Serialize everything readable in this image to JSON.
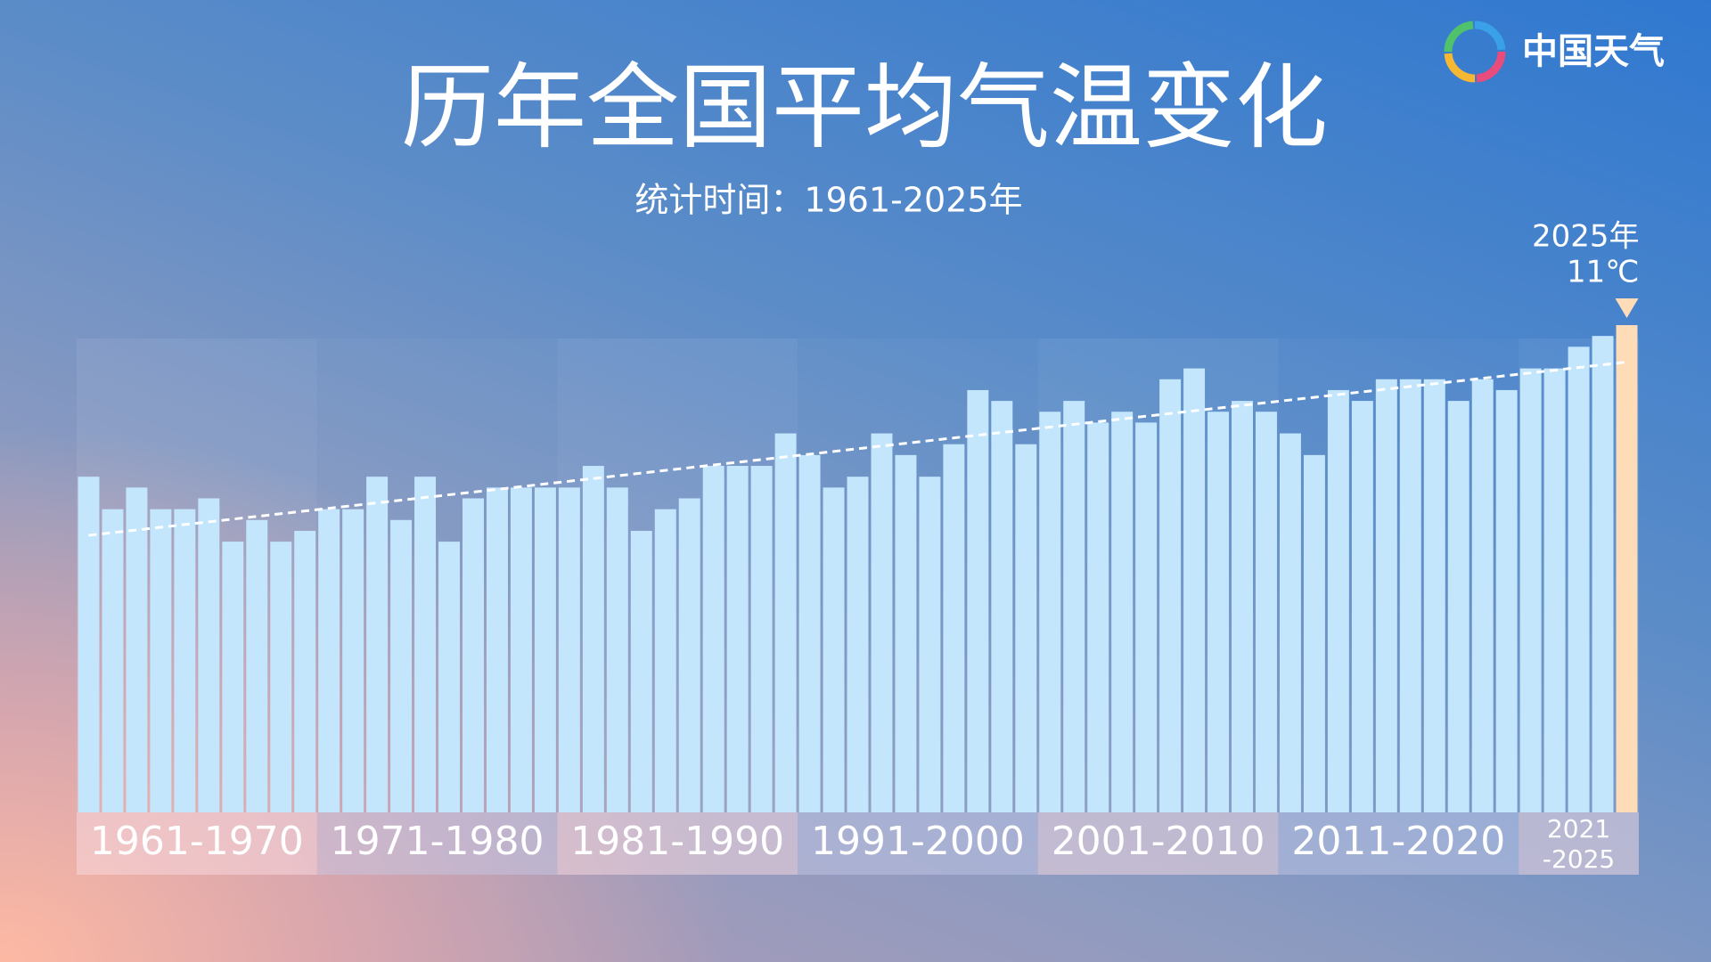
{
  "logo": "中国天气",
  "chart_data": {
    "type": "bar",
    "title": "历年全国平均气温变化",
    "subtitle": "统计时间：1961-2025年",
    "categories": [
      null,
      null,
      null,
      null,
      null,
      null,
      null,
      null,
      null,
      null,
      null,
      null,
      null,
      null,
      null,
      null,
      null,
      null,
      null,
      null,
      null,
      null,
      null,
      null,
      null,
      null,
      null,
      null,
      null,
      null,
      null,
      null,
      null,
      null,
      null,
      null,
      null,
      null,
      null,
      null,
      null,
      null,
      null,
      null,
      null,
      null,
      null,
      null,
      null,
      null,
      null,
      null,
      null,
      null,
      null,
      null,
      null,
      null,
      null,
      null,
      null,
      null,
      null,
      null,
      null
    ],
    "values": [
      9.6,
      9.3,
      9.5,
      9.3,
      9.3,
      9.4,
      9.0,
      9.2,
      9.0,
      9.1,
      9.3,
      9.3,
      9.6,
      9.2,
      9.6,
      9.0,
      9.4,
      9.5,
      9.5,
      9.5,
      9.5,
      9.7,
      9.5,
      9.1,
      9.3,
      9.4,
      9.7,
      9.7,
      9.7,
      10.0,
      9.8,
      9.5,
      9.6,
      10.0,
      9.8,
      9.6,
      9.9,
      10.4,
      10.3,
      9.9,
      10.2,
      10.3,
      10.1,
      10.2,
      10.1,
      10.5,
      10.6,
      10.2,
      10.3,
      10.2,
      10.0,
      9.8,
      10.4,
      10.3,
      10.5,
      10.5,
      10.5,
      10.3,
      10.5,
      10.4,
      10.6,
      10.6,
      10.8,
      10.9,
      11
    ],
    "value_labels": [
      null,
      null,
      null,
      null,
      null,
      null,
      null,
      null,
      null,
      null,
      null,
      null,
      null,
      null,
      null,
      null,
      null,
      null,
      null,
      null,
      null,
      null,
      null,
      null,
      null,
      null,
      null,
      null,
      null,
      null,
      null,
      null,
      null,
      null,
      null,
      null,
      null,
      null,
      null,
      null,
      null,
      null,
      null,
      null,
      null,
      null,
      null,
      null,
      null,
      null,
      null,
      null,
      null,
      null,
      null,
      null,
      null,
      null,
      null,
      null,
      null,
      null,
      null,
      null,
      "11℃"
    ],
    "annotation": "2025年",
    "groups": [
      "1961-1970",
      "1971-1980",
      "1981-1990",
      "1991-2000",
      "2001-2010",
      "2011-2020",
      "2021\n-2025"
    ],
    "color": "#c3e6fd",
    "highlight_color": "#fedcb8",
    "ylim": [
      6.5,
      11
    ],
    "trendline": true
  }
}
